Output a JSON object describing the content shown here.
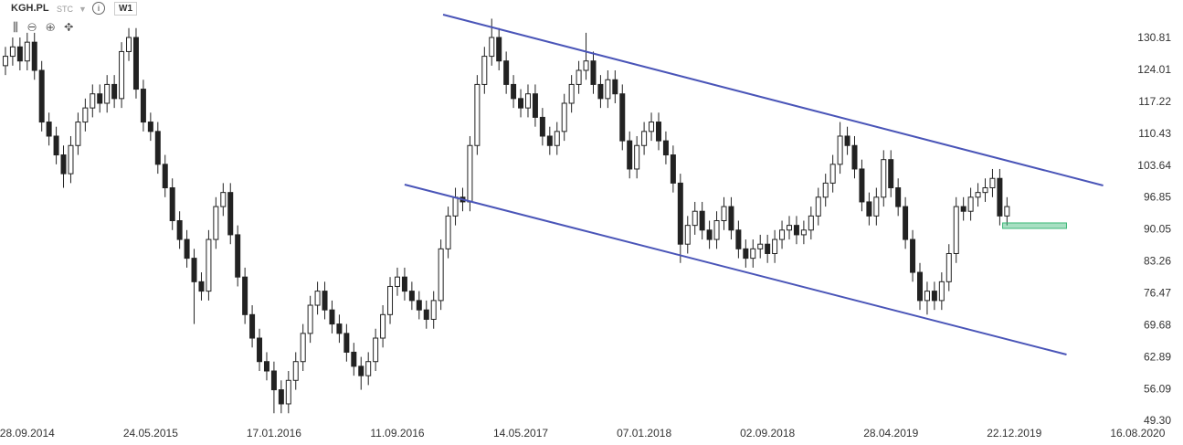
{
  "chart_data": {
    "type": "candlestick",
    "symbol": "KGH.PL",
    "market": "STC",
    "interval": "W1",
    "xlim": [
      -7.5,
      318.5
    ],
    "ylim": [
      47.55,
      138.98
    ],
    "xticks": [
      {
        "value": 0,
        "label": "28.09.2014"
      },
      {
        "value": 34,
        "label": "24.05.2015"
      },
      {
        "value": 68,
        "label": "17.01.2016"
      },
      {
        "value": 102,
        "label": "11.09.2016"
      },
      {
        "value": 136,
        "label": "14.05.2017"
      },
      {
        "value": 170,
        "label": "07.01.2018"
      },
      {
        "value": 204,
        "label": "02.09.2018"
      },
      {
        "value": 238,
        "label": "28.04.2019"
      },
      {
        "value": 272,
        "label": "22.12.2019"
      },
      {
        "value": 306,
        "label": "16.08.2020"
      }
    ],
    "yticks": [
      130.81,
      124.01,
      117.22,
      110.43,
      103.64,
      96.85,
      90.05,
      83.26,
      76.47,
      69.68,
      62.89,
      56.09,
      {
        "value": 49.3,
        "label": "49.30"
      }
    ],
    "up_color": "#ffffff",
    "down_color": "#222222",
    "line_color": "#4a55b8",
    "zone_color": "#3cb878",
    "x": [
      -6,
      -4,
      -2,
      0,
      2,
      4,
      6,
      8,
      10,
      12,
      14,
      16,
      18,
      20,
      22,
      24,
      26,
      28,
      30,
      32,
      34,
      36,
      38,
      40,
      42,
      44,
      46,
      48,
      50,
      52,
      54,
      56,
      58,
      60,
      62,
      64,
      66,
      68,
      70,
      72,
      74,
      76,
      78,
      80,
      82,
      84,
      86,
      88,
      90,
      92,
      94,
      96,
      98,
      100,
      102,
      104,
      106,
      108,
      110,
      112,
      114,
      116,
      118,
      120,
      122,
      124,
      126,
      128,
      130,
      132,
      134,
      136,
      138,
      140,
      142,
      144,
      146,
      148,
      150,
      152,
      154,
      156,
      158,
      160,
      162,
      164,
      166,
      168,
      170,
      172,
      174,
      176,
      178,
      180,
      182,
      184,
      186,
      188,
      190,
      192,
      194,
      196,
      198,
      200,
      202,
      204,
      206,
      208,
      210,
      212,
      214,
      216,
      218,
      220,
      222,
      224,
      226,
      228,
      230,
      232,
      234,
      236,
      238,
      240,
      242,
      244,
      246,
      248,
      250,
      252,
      254,
      256,
      258,
      260,
      262,
      264,
      266,
      268,
      270
    ],
    "candles": [
      [
        125,
        129,
        123,
        127
      ],
      [
        127,
        131,
        125,
        129
      ],
      [
        129,
        131,
        124,
        126
      ],
      [
        126,
        132,
        124,
        130
      ],
      [
        130,
        132,
        122,
        124
      ],
      [
        124,
        126,
        111,
        113
      ],
      [
        113,
        115,
        108,
        110
      ],
      [
        110,
        112,
        104,
        106
      ],
      [
        106,
        108,
        99,
        102
      ],
      [
        102,
        110,
        100,
        108
      ],
      [
        108,
        115,
        106,
        113
      ],
      [
        113,
        118,
        111,
        116
      ],
      [
        116,
        121,
        114,
        119
      ],
      [
        119,
        121,
        115,
        117
      ],
      [
        117,
        123,
        115,
        121
      ],
      [
        121,
        123,
        116,
        118
      ],
      [
        118,
        130,
        116,
        128
      ],
      [
        128,
        133,
        126,
        131
      ],
      [
        131,
        133,
        118,
        120
      ],
      [
        120,
        122,
        111,
        113
      ],
      [
        113,
        115,
        109,
        111
      ],
      [
        111,
        113,
        102,
        104
      ],
      [
        104,
        106,
        97,
        99
      ],
      [
        99,
        101,
        90,
        92
      ],
      [
        92,
        94,
        86,
        88
      ],
      [
        88,
        90,
        82,
        84
      ],
      [
        84,
        86,
        70,
        79
      ],
      [
        79,
        81,
        75,
        77
      ],
      [
        77,
        90,
        75,
        88
      ],
      [
        88,
        97,
        86,
        95
      ],
      [
        95,
        100,
        93,
        98
      ],
      [
        98,
        100,
        87,
        89
      ],
      [
        89,
        91,
        78,
        80
      ],
      [
        80,
        82,
        70,
        72
      ],
      [
        72,
        74,
        65,
        67
      ],
      [
        67,
        69,
        60,
        62
      ],
      [
        62,
        64,
        58,
        60
      ],
      [
        60,
        62,
        51,
        56
      ],
      [
        56,
        58,
        51,
        53
      ],
      [
        53,
        60,
        51,
        58
      ],
      [
        58,
        64,
        56,
        62
      ],
      [
        62,
        70,
        60,
        68
      ],
      [
        68,
        76,
        66,
        74
      ],
      [
        74,
        79,
        72,
        77
      ],
      [
        77,
        79,
        71,
        73
      ],
      [
        73,
        75,
        68,
        70
      ],
      [
        70,
        72,
        66,
        68
      ],
      [
        68,
        70,
        62,
        64
      ],
      [
        64,
        66,
        59,
        61
      ],
      [
        61,
        63,
        56,
        59
      ],
      [
        59,
        64,
        57,
        62
      ],
      [
        62,
        69,
        60,
        67
      ],
      [
        67,
        74,
        65,
        72
      ],
      [
        72,
        80,
        70,
        78
      ],
      [
        78,
        82,
        76,
        80
      ],
      [
        80,
        82,
        75,
        77
      ],
      [
        77,
        79,
        73,
        75
      ],
      [
        75,
        77,
        71,
        73
      ],
      [
        73,
        75,
        69,
        71
      ],
      [
        71,
        77,
        69,
        75
      ],
      [
        75,
        88,
        73,
        86
      ],
      [
        86,
        95,
        84,
        93
      ],
      [
        93,
        99,
        91,
        97
      ],
      [
        97,
        99,
        94,
        96
      ],
      [
        96,
        110,
        94,
        108
      ],
      [
        108,
        123,
        106,
        121
      ],
      [
        121,
        129,
        119,
        127
      ],
      [
        127,
        135,
        125,
        131
      ],
      [
        131,
        133,
        124,
        126
      ],
      [
        126,
        128,
        119,
        121
      ],
      [
        121,
        123,
        116,
        118
      ],
      [
        118,
        120,
        114,
        116
      ],
      [
        116,
        121,
        114,
        119
      ],
      [
        119,
        121,
        112,
        114
      ],
      [
        114,
        116,
        108,
        110
      ],
      [
        110,
        112,
        106,
        108
      ],
      [
        108,
        113,
        106,
        111
      ],
      [
        111,
        119,
        109,
        117
      ],
      [
        117,
        123,
        115,
        121
      ],
      [
        121,
        126,
        119,
        124
      ],
      [
        124,
        132,
        122,
        126
      ],
      [
        126,
        128,
        119,
        121
      ],
      [
        121,
        123,
        116,
        118
      ],
      [
        118,
        124,
        116,
        122
      ],
      [
        122,
        124,
        117,
        119
      ],
      [
        119,
        121,
        107,
        109
      ],
      [
        109,
        111,
        101,
        103
      ],
      [
        103,
        110,
        101,
        108
      ],
      [
        108,
        113,
        106,
        111
      ],
      [
        111,
        115,
        109,
        113
      ],
      [
        113,
        115,
        107,
        109
      ],
      [
        109,
        111,
        104,
        106
      ],
      [
        106,
        108,
        98,
        100
      ],
      [
        100,
        102,
        83,
        87
      ],
      [
        87,
        93,
        85,
        91
      ],
      [
        91,
        96,
        89,
        94
      ],
      [
        94,
        96,
        88,
        90
      ],
      [
        90,
        92,
        86,
        88
      ],
      [
        88,
        94,
        86,
        92
      ],
      [
        92,
        97,
        90,
        95
      ],
      [
        95,
        97,
        88,
        90
      ],
      [
        90,
        92,
        84,
        86
      ],
      [
        86,
        88,
        82,
        84
      ],
      [
        84,
        88,
        82,
        86
      ],
      [
        86,
        89,
        84,
        87
      ],
      [
        87,
        89,
        83,
        85
      ],
      [
        85,
        90,
        83,
        88
      ],
      [
        88,
        92,
        86,
        90
      ],
      [
        90,
        93,
        88,
        91
      ],
      [
        91,
        93,
        87,
        89
      ],
      [
        89,
        92,
        87,
        90
      ],
      [
        90,
        95,
        88,
        93
      ],
      [
        93,
        99,
        91,
        97
      ],
      [
        97,
        102,
        95,
        100
      ],
      [
        100,
        106,
        98,
        104
      ],
      [
        104,
        113,
        102,
        110
      ],
      [
        110,
        112,
        106,
        108
      ],
      [
        108,
        110,
        101,
        103
      ],
      [
        103,
        105,
        94,
        96
      ],
      [
        96,
        98,
        91,
        93
      ],
      [
        93,
        99,
        91,
        97
      ],
      [
        97,
        107,
        95,
        105
      ],
      [
        105,
        107,
        97,
        99
      ],
      [
        99,
        101,
        93,
        95
      ],
      [
        95,
        97,
        86,
        88
      ],
      [
        88,
        90,
        79,
        81
      ],
      [
        81,
        83,
        73,
        75
      ],
      [
        75,
        79,
        72,
        77
      ],
      [
        77,
        79,
        73,
        75
      ],
      [
        75,
        81,
        73,
        79
      ],
      [
        79,
        87,
        77,
        85
      ],
      [
        85,
        97,
        83,
        95
      ],
      [
        95,
        97,
        92,
        94
      ],
      [
        94,
        99,
        92,
        97
      ],
      [
        97,
        100,
        95,
        98
      ],
      [
        98,
        101,
        96,
        99
      ],
      [
        99,
        103,
        97,
        101
      ],
      [
        101,
        103,
        91,
        93
      ],
      [
        93,
        97,
        91,
        95
      ]
    ],
    "trend_lines": [
      {
        "x": [
          114.6,
          296.5
        ],
        "y": [
          135.87,
          99.49
        ]
      },
      {
        "x": [
          104.0,
          286.4
        ],
        "y": [
          99.69,
          63.5
        ]
      }
    ],
    "zone": {
      "x": [
        268.8,
        286.4
      ],
      "y": [
        90.35,
        91.52
      ]
    }
  }
}
